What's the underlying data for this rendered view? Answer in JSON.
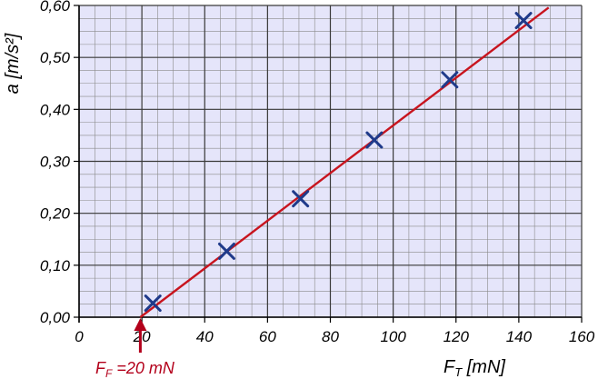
{
  "chart_data": {
    "type": "scatter",
    "title": "",
    "xlabel": {
      "main": "F",
      "sub": "T",
      "unit": " [mN]"
    },
    "ylabel": "a [m/s²]",
    "xlim": [
      0,
      160
    ],
    "ylim": [
      0,
      0.6
    ],
    "x_ticks": [
      0,
      20,
      40,
      60,
      80,
      100,
      120,
      140,
      160
    ],
    "x_tick_labels": [
      "0",
      "20",
      "40",
      "60",
      "80",
      "100",
      "120",
      "140",
      "160"
    ],
    "y_ticks": [
      0,
      0.1,
      0.2,
      0.3,
      0.4,
      0.5,
      0.6
    ],
    "y_tick_labels": [
      "0,00",
      "0,10",
      "0,20",
      "0,30",
      "0,40",
      "0,50",
      "0,60"
    ],
    "grid": true,
    "series": [
      {
        "marker": "x",
        "points": [
          {
            "x": 23.5,
            "y": 0.027
          },
          {
            "x": 47.0,
            "y": 0.127
          },
          {
            "x": 70.5,
            "y": 0.228
          },
          {
            "x": 94.0,
            "y": 0.341
          },
          {
            "x": 118.0,
            "y": 0.457
          },
          {
            "x": 141.5,
            "y": 0.571
          }
        ]
      }
    ],
    "fit_line": {
      "x": [
        19.5,
        149.5
      ],
      "y": [
        0.0,
        0.596
      ]
    },
    "annotation": {
      "main": "F",
      "sub": "F",
      "text": " =20 mN",
      "x": 19.5
    }
  },
  "colors": {
    "plot_background": "#e5e5fa",
    "grid_major": "#3a3a3a",
    "grid_minor": "#8a8a8a",
    "marker": "#1f3a8a",
    "fit_line": "#c8141e",
    "annotation": "#b3001b"
  }
}
